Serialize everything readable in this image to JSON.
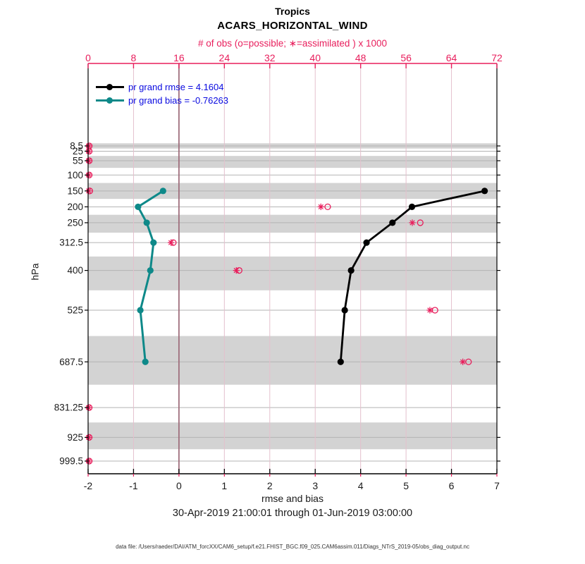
{
  "header": {
    "title_line1": "Tropics",
    "title_line2": "ACARS_HORIZONTAL_WIND",
    "obs_axis_label": "# of obs (o=possible; ∗=assimilated ) x 1000"
  },
  "legend": {
    "items": [
      {
        "label": "pr grand rmse = 4.1604",
        "color": "#000000"
      },
      {
        "label": "pr grand bias = -0.76263",
        "color": "#0e8989"
      }
    ],
    "text_color": "#0909e0"
  },
  "footer": {
    "xlabel": "rmse and bias",
    "date_range": "30-Apr-2019 21:00:01 through 01-Jun-2019 03:00:00",
    "datafile": "data file: /Users/raeder/DAI/ATM_forcXX/CAM6_setup/f.e21.FHIST_BGC.f09_025.CAM6assim.011/Diags_NTrS_2019-05/obs_diag_output.nc"
  },
  "ylabel": "hPa",
  "colors": {
    "accent_crimson": "#e81e5c",
    "grid_pink": "#e4c0cd",
    "zero_line": "#a06f7d",
    "band_gray": "#d3d3d3",
    "level_line_gray": "#b3b3b3",
    "rmse_black": "#000000",
    "bias_teal": "#0e8989",
    "legend_blue": "#0909e0",
    "tick_text": "#1a1a1a"
  },
  "chart_data": {
    "type": "line",
    "title": "Tropics",
    "subtitle": "ACARS_HORIZONTAL_WIND",
    "xlabel": "rmse and bias",
    "ylabel": "hPa",
    "x2label": "# of obs (o=possible; ∗=assimilated ) x 1000",
    "x_range": [
      -2,
      7
    ],
    "x_ticks": [
      -2,
      -1,
      0,
      1,
      2,
      3,
      4,
      5,
      6,
      7
    ],
    "x2_range": [
      0,
      72
    ],
    "x2_ticks": [
      0,
      8,
      16,
      24,
      32,
      40,
      48,
      56,
      64,
      72
    ],
    "y_axis_reversed": true,
    "grid": true,
    "legend_position": "top-left-inside",
    "y_levels": [
      8.5,
      25,
      55,
      100,
      150,
      200,
      250,
      312.5,
      400,
      525,
      687.5,
      831.25,
      925,
      999.5
    ],
    "y_tick_labels": [
      "8.5",
      "25",
      "55",
      "100",
      "150",
      "200",
      "250",
      "312.5",
      "400",
      "525",
      "687.5",
      "831.25",
      "925",
      "999.5"
    ],
    "shaded_levels": [
      8.5,
      55,
      150,
      250,
      400,
      687.5,
      925
    ],
    "series": [
      {
        "name": "pr grand rmse",
        "summary_value": 4.1604,
        "color": "#000000",
        "levels": [
          150,
          200,
          250,
          312.5,
          400,
          525,
          687.5
        ],
        "values": [
          6.73,
          5.13,
          4.7,
          4.13,
          3.79,
          3.65,
          3.56
        ]
      },
      {
        "name": "pr grand bias",
        "summary_value": -0.76263,
        "color": "#0e8989",
        "levels": [
          150,
          200,
          250,
          312.5,
          400,
          525,
          687.5
        ],
        "values": [
          -0.35,
          -0.9,
          -0.71,
          -0.56,
          -0.63,
          -0.85,
          -0.74
        ]
      }
    ],
    "obs_counts_x1000": {
      "levels": [
        8.5,
        25,
        55,
        100,
        150,
        200,
        250,
        312.5,
        400,
        525,
        687.5,
        831.25,
        925,
        999.5
      ],
      "possible": [
        0.2,
        0.2,
        0.2,
        0.2,
        0.3,
        42.2,
        58.5,
        15.0,
        26.6,
        61.1,
        67.0,
        0.2,
        0.2,
        0.2
      ],
      "assimilated": [
        0.1,
        0.1,
        0.1,
        0.1,
        0.1,
        41.0,
        57.1,
        14.6,
        26.1,
        60.2,
        66.0,
        0.1,
        0.1,
        0.1
      ]
    }
  }
}
